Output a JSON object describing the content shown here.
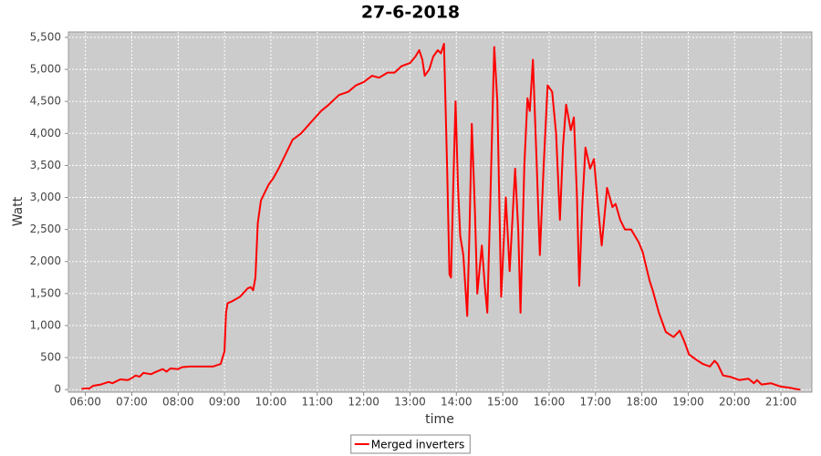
{
  "chart_data": {
    "type": "line",
    "title": "27-6-2018",
    "x_label": "time",
    "y_label": "Watt",
    "x": [
      "05:55",
      "06:00",
      "06:05",
      "06:10",
      "06:20",
      "06:30",
      "06:35",
      "06:45",
      "06:55",
      "07:00",
      "07:05",
      "07:10",
      "07:15",
      "07:25",
      "07:30",
      "07:40",
      "07:45",
      "07:50",
      "08:00",
      "08:05",
      "08:15",
      "08:30",
      "08:45",
      "08:55",
      "09:00",
      "09:02",
      "09:04",
      "09:10",
      "09:20",
      "09:30",
      "09:34",
      "09:37",
      "09:40",
      "09:43",
      "09:47",
      "09:51",
      "09:57",
      "10:03",
      "10:10",
      "10:20",
      "10:28",
      "10:39",
      "10:50",
      "11:05",
      "11:15",
      "11:28",
      "11:40",
      "11:50",
      "12:00",
      "12:11",
      "12:20",
      "12:31",
      "12:40",
      "12:49",
      "13:00",
      "13:07",
      "13:12",
      "13:16",
      "13:19",
      "13:25",
      "13:30",
      "13:36",
      "13:40",
      "13:44",
      "13:48",
      "13:51",
      "13:53",
      "13:56",
      "13:59",
      "14:02",
      "14:05",
      "14:09",
      "14:14",
      "14:17",
      "14:20",
      "14:24",
      "14:27",
      "14:33",
      "14:37",
      "14:40",
      "14:44",
      "14:49",
      "14:53",
      "14:58",
      "15:04",
      "15:09",
      "15:16",
      "15:20",
      "15:23",
      "15:28",
      "15:32",
      "15:35",
      "15:39",
      "15:44",
      "15:48",
      "15:53",
      "15:58",
      "16:04",
      "16:09",
      "16:14",
      "16:18",
      "16:22",
      "16:28",
      "16:32",
      "16:36",
      "16:39",
      "16:43",
      "16:47",
      "16:53",
      "16:58",
      "17:03",
      "17:08",
      "17:15",
      "17:22",
      "17:26",
      "17:32",
      "17:38",
      "17:46",
      "17:56",
      "18:01",
      "18:06",
      "18:10",
      "18:14",
      "18:22",
      "18:31",
      "18:41",
      "18:49",
      "18:55",
      "19:01",
      "19:10",
      "19:19",
      "19:28",
      "19:34",
      "19:38",
      "19:45",
      "19:54",
      "20:06",
      "20:18",
      "20:25",
      "20:29",
      "20:35",
      "20:47",
      "20:59",
      "21:11",
      "21:19",
      "21:25"
    ],
    "series": [
      {
        "name": "Merged inverters",
        "color": "#ff0000",
        "values": [
          10,
          20,
          15,
          60,
          80,
          120,
          100,
          160,
          150,
          180,
          220,
          200,
          260,
          240,
          270,
          320,
          280,
          330,
          320,
          350,
          360,
          360,
          360,
          400,
          600,
          1200,
          1350,
          1380,
          1450,
          1580,
          1600,
          1550,
          1750,
          2600,
          2950,
          3050,
          3200,
          3300,
          3450,
          3700,
          3900,
          4000,
          4150,
          4350,
          4450,
          4600,
          4650,
          4750,
          4800,
          4900,
          4870,
          4950,
          4950,
          5050,
          5100,
          5200,
          5300,
          5150,
          4900,
          5000,
          5200,
          5300,
          5250,
          5400,
          3500,
          1800,
          1750,
          3200,
          4500,
          3200,
          2400,
          2100,
          1150,
          2500,
          4150,
          2800,
          1500,
          2250,
          1600,
          1200,
          3000,
          5350,
          4500,
          1450,
          3000,
          1850,
          3450,
          2500,
          1200,
          3500,
          4550,
          4350,
          5150,
          3500,
          2100,
          3500,
          4750,
          4650,
          4000,
          2650,
          3800,
          4450,
          4050,
          4250,
          3000,
          1620,
          2900,
          3780,
          3450,
          3600,
          2900,
          2250,
          3150,
          2850,
          2900,
          2650,
          2500,
          2500,
          2300,
          2150,
          1900,
          1700,
          1550,
          1200,
          900,
          820,
          920,
          750,
          550,
          470,
          400,
          360,
          450,
          400,
          220,
          200,
          150,
          170,
          100,
          150,
          80,
          100,
          50,
          30,
          10,
          0
        ]
      }
    ],
    "xlim": [
      "05:38",
      "21:40"
    ],
    "xticks": [
      "06:00",
      "07:00",
      "08:00",
      "09:00",
      "10:00",
      "11:00",
      "12:00",
      "13:00",
      "14:00",
      "15:00",
      "16:00",
      "17:00",
      "18:00",
      "19:00",
      "20:00",
      "21:00"
    ],
    "ylim": [
      -40,
      5585
    ],
    "yticks": [
      0,
      500,
      {
        "value": 1000,
        "label": "1,000"
      },
      {
        "value": 1500,
        "label": "1,500"
      },
      {
        "value": 2000,
        "label": "2,000"
      },
      {
        "value": 2500,
        "label": "2,500"
      },
      {
        "value": 3000,
        "label": "3,000"
      },
      {
        "value": 3500,
        "label": "3,500"
      },
      {
        "value": 4000,
        "label": "4,000"
      },
      {
        "value": 4500,
        "label": "4,500"
      },
      {
        "value": 5000,
        "label": "5,000"
      },
      {
        "value": 5500,
        "label": "5,500"
      }
    ],
    "grid": true,
    "legend": "bottom"
  }
}
